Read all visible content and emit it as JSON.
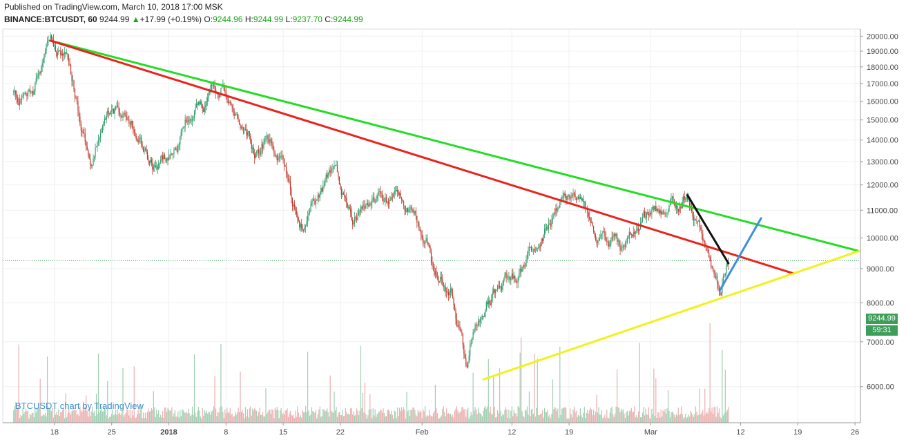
{
  "header": {
    "line1": "Published on TradingView.com, March 10, 2018 17:00 MSK",
    "symbol": "BINANCE:BTCUSDT, 60",
    "last": "9244.99",
    "change_arrow": "▲",
    "change": "+17.99 (+0.19%)",
    "o_label": "O:",
    "o_value": "9244.96",
    "h_label": "H:",
    "h_value": "9244.99",
    "l_label": "L:",
    "l_value": "9237.70",
    "c_label": "C:",
    "c_value": "9244.99"
  },
  "watermark": "BTCUSDT chart by TradingView",
  "price_label": "9244.99",
  "countdown_label": "59:31",
  "colors": {
    "up": "#2e9d6b",
    "down": "#c0392b",
    "vol_up": "#8fc7a4",
    "vol_down": "#e8a0a0",
    "green_line": "#22dd22",
    "red_line": "#e8241c",
    "yellow_line": "#f2f21a",
    "blue_line": "#3e8de0",
    "black_line": "#111111",
    "price_box": "#3d9e5a"
  },
  "chart_data": {
    "type": "candlestick",
    "symbol": "BINANCE:BTCUSDT",
    "interval": "60",
    "y_ticks": [
      6000,
      7000,
      8000,
      9000,
      10000,
      11000,
      12000,
      13000,
      14000,
      15000,
      16000,
      17000,
      18000,
      19000,
      20000
    ],
    "x_ticks": [
      "18",
      "25",
      "2018",
      "8",
      "15",
      "22",
      "Feb",
      "12",
      "19",
      "Mar",
      "12",
      "19",
      "26"
    ],
    "last_price": 9244.99,
    "price_path": [
      {
        "date": "2017-12-15",
        "close": 16500
      },
      {
        "date": "2017-12-17",
        "close": 19600
      },
      {
        "date": "2017-12-19",
        "close": 18000
      },
      {
        "date": "2017-12-20",
        "close": 16400
      },
      {
        "date": "2017-12-22",
        "close": 12500
      },
      {
        "date": "2017-12-23",
        "close": 14500
      },
      {
        "date": "2017-12-26",
        "close": 15800
      },
      {
        "date": "2017-12-28",
        "close": 14000
      },
      {
        "date": "2017-12-30",
        "close": 12500
      },
      {
        "date": "2018-01-01",
        "close": 13500
      },
      {
        "date": "2018-01-03",
        "close": 15200
      },
      {
        "date": "2018-01-07",
        "close": 16800
      },
      {
        "date": "2018-01-09",
        "close": 15000
      },
      {
        "date": "2018-01-11",
        "close": 13500
      },
      {
        "date": "2018-01-13",
        "close": 14200
      },
      {
        "date": "2018-01-16",
        "close": 11000
      },
      {
        "date": "2018-01-17",
        "close": 10300
      },
      {
        "date": "2018-01-19",
        "close": 11500
      },
      {
        "date": "2018-01-21",
        "close": 12800
      },
      {
        "date": "2018-01-23",
        "close": 10800
      },
      {
        "date": "2018-01-26",
        "close": 11200
      },
      {
        "date": "2018-01-29",
        "close": 11700
      },
      {
        "date": "2018-02-01",
        "close": 10000
      },
      {
        "date": "2018-02-02",
        "close": 8800
      },
      {
        "date": "2018-02-04",
        "close": 8500
      },
      {
        "date": "2018-02-06",
        "close": 6300
      },
      {
        "date": "2018-02-07",
        "close": 7600
      },
      {
        "date": "2018-02-09",
        "close": 8300
      },
      {
        "date": "2018-02-12",
        "close": 8700
      },
      {
        "date": "2018-02-15",
        "close": 10100
      },
      {
        "date": "2018-02-17",
        "close": 10900
      },
      {
        "date": "2018-02-20",
        "close": 11500
      },
      {
        "date": "2018-02-22",
        "close": 10200
      },
      {
        "date": "2018-02-25",
        "close": 9600
      },
      {
        "date": "2018-02-28",
        "close": 10800
      },
      {
        "date": "2018-03-02",
        "close": 11000
      },
      {
        "date": "2018-03-05",
        "close": 11500
      },
      {
        "date": "2018-03-07",
        "close": 10000
      },
      {
        "date": "2018-03-08",
        "close": 9300
      },
      {
        "date": "2018-03-09",
        "close": 8500
      },
      {
        "date": "2018-03-10",
        "close": 9245
      }
    ],
    "trendlines": [
      {
        "color": "green",
        "from": {
          "date": "2017-12-17",
          "price": 19700
        },
        "to": {
          "date": "2018-03-26",
          "price": 9560
        }
      },
      {
        "color": "red",
        "from": {
          "date": "2017-12-17",
          "price": 19700
        },
        "to": {
          "date": "2018-03-18",
          "price": 8850
        }
      },
      {
        "color": "yellow",
        "from": {
          "date": "2018-02-08",
          "price": 6150
        },
        "to": {
          "date": "2018-03-26",
          "price": 9560
        }
      },
      {
        "color": "black",
        "from": {
          "date": "2018-03-05",
          "price": 11580
        },
        "to": {
          "date": "2018-03-10",
          "price": 9170
        }
      },
      {
        "color": "blue",
        "from": {
          "date": "2018-03-09",
          "price": 8370
        },
        "to": {
          "date": "2018-03-14",
          "price": 10700
        }
      }
    ]
  }
}
